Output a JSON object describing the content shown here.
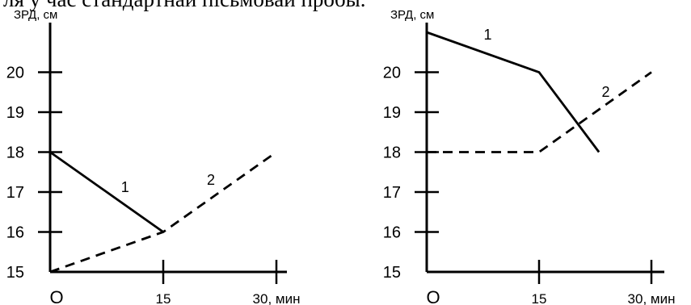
{
  "page": {
    "heading": "ля у час стандартнай пісьмовай пробы."
  },
  "chart_data": [
    {
      "type": "line",
      "ylabel": "ЗРД, см",
      "xlabel": "30, мин",
      "x_ticks": [
        0,
        15,
        30
      ],
      "x_tick_labels": [
        "О",
        "15",
        "30, мин"
      ],
      "y_ticks": [
        15,
        16,
        17,
        18,
        19,
        20
      ],
      "y_tick_labels": [
        "15",
        "16",
        "17",
        "18",
        "19",
        "20"
      ],
      "ylim": [
        15,
        21
      ],
      "xlim": [
        0,
        30
      ],
      "grid": false,
      "series": [
        {
          "name": "1",
          "style": "solid",
          "x": [
            0,
            15
          ],
          "y": [
            18,
            16
          ]
        },
        {
          "name": "2",
          "style": "dashed",
          "x": [
            0,
            15,
            30
          ],
          "y": [
            15,
            16,
            18
          ]
        }
      ]
    },
    {
      "type": "line",
      "ylabel": "ЗРД, см",
      "xlabel": "30, мин",
      "x_ticks": [
        0,
        15,
        30
      ],
      "x_tick_labels": [
        "О",
        "15",
        "30, мин"
      ],
      "y_ticks": [
        15,
        16,
        17,
        18,
        19,
        20
      ],
      "y_tick_labels": [
        "15",
        "16",
        "17",
        "18",
        "19",
        "20"
      ],
      "ylim": [
        15,
        21
      ],
      "xlim": [
        0,
        30
      ],
      "grid": false,
      "series": [
        {
          "name": "1",
          "style": "solid",
          "x": [
            0,
            15,
            23
          ],
          "y": [
            21,
            20,
            18
          ]
        },
        {
          "name": "2",
          "style": "dashed",
          "x": [
            0,
            15,
            30
          ],
          "y": [
            18,
            18,
            20
          ]
        }
      ]
    }
  ]
}
